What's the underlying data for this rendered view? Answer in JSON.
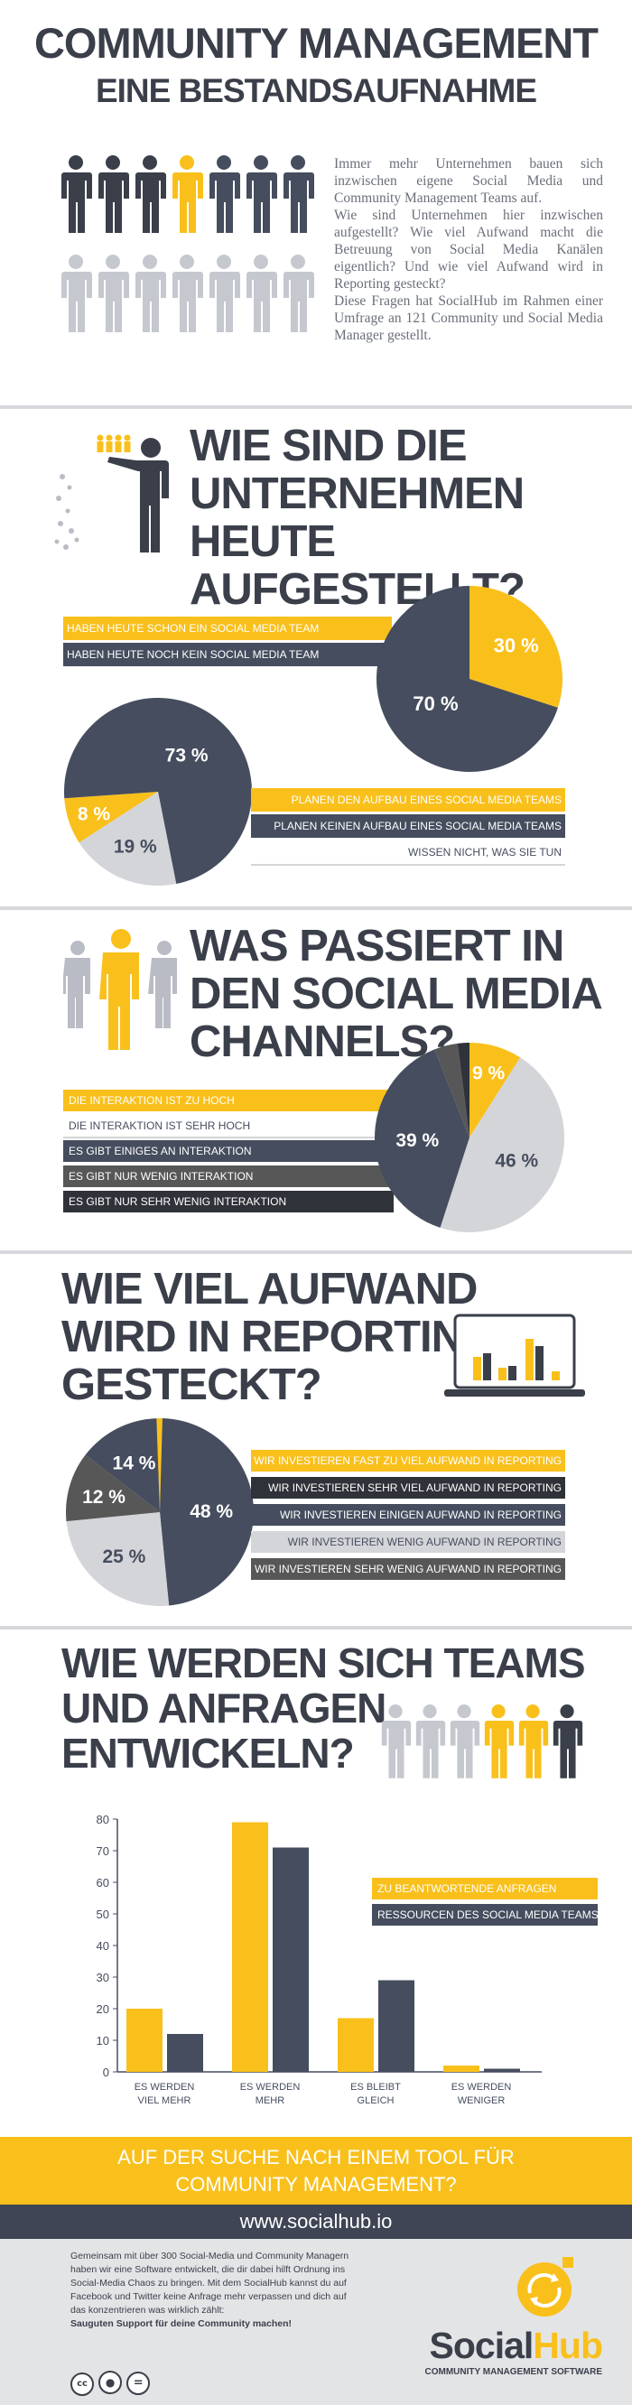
{
  "header": {
    "title": "COMMUNITY MANAGEMENT",
    "subtitle": "EINE BESTANDSAUFNAHME"
  },
  "intro": {
    "lines": [
      "Immer mehr Unternehmen bauen sich inzwischen eigene Social Media und Community Management Teams auf.",
      "Wie sind Unternehmen hier inzwischen aufgestellt? Wie viel Aufwand macht die Betreuung von Social Media Kanälen eigentlich? Und wie viel Aufwand wird in Reporting gesteckt?",
      "Diese Fragen hat SocialHub im Rahmen einer Umfrage an 121 Community und Social Media Manager gestellt."
    ]
  },
  "section1": {
    "title_lines": [
      "WIE SIND DIE",
      "UNTERNEHMEN",
      "HEUTE AUFGESTELLT?"
    ]
  },
  "section2": {
    "title_lines": [
      "WAS PASSIERT IN",
      "DEN SOCIAL MEDIA",
      "CHANNELS?"
    ]
  },
  "section3": {
    "title_lines": [
      "WIE VIEL AUFWAND",
      "WIRD IN REPORTING",
      "GESTECKT?"
    ]
  },
  "section4": {
    "title_lines": [
      "WIE WERDEN SICH TEAMS",
      "UND ANFRAGEN",
      "ENTWICKELN?"
    ]
  },
  "colors": {
    "yellow": "#f9c01c",
    "dark": "#454d5e",
    "darkgray": "#575757",
    "lightgray": "#d4d5d9",
    "title": "#3a3f4a"
  },
  "chart_data": [
    {
      "type": "pie",
      "labels": [
        "HABEN HEUTE SCHON EIN SOCIAL MEDIA TEAM",
        "HABEN HEUTE NOCH KEIN SOCIAL MEDIA TEAM"
      ],
      "values": [
        30,
        70
      ],
      "value_labels": [
        "30 %",
        "70 %"
      ],
      "colors": [
        "#f9c01c",
        "#454d5e"
      ]
    },
    {
      "type": "pie",
      "labels": [
        "PLANEN DEN AUFBAU EINES SOCIAL MEDIA TEAMS",
        "PLANEN KEINEN AUFBAU EINES SOCIAL MEDIA TEAMS",
        "WISSEN NICHT, WAS SIE TUN"
      ],
      "values": [
        8,
        73,
        19
      ],
      "value_labels": [
        "8 %",
        "73 %",
        "19 %"
      ],
      "colors": [
        "#f9c01c",
        "#454d5e",
        "#d4d5d9"
      ]
    },
    {
      "type": "pie",
      "labels": [
        "DIE INTERAKTION IST ZU HOCH",
        "DIE INTERAKTION IST SEHR HOCH",
        "ES GIBT EINIGES AN INTERAKTION",
        "ES GIBT NUR WENIG INTERAKTION",
        "ES GIBT NUR SEHR WENIG INTERAKTION"
      ],
      "values": [
        9,
        46,
        39,
        4,
        2
      ],
      "value_labels": [
        "9 %",
        "46 %",
        "39 %",
        "",
        ""
      ],
      "colors": [
        "#f9c01c",
        "#d4d5d9",
        "#454d5e",
        "#575757",
        "#2f3238"
      ]
    },
    {
      "type": "pie",
      "labels": [
        "WIR INVESTIEREN FAST ZU VIEL AUFWAND IN REPORTING",
        "WIR INVESTIEREN SEHR VIEL AUFWAND IN REPORTING",
        "WIR INVESTIEREN EINIGEN AUFWAND IN REPORTING",
        "WIR INVESTIEREN WENIG AUFWAND IN REPORTING",
        "WIR INVESTIEREN SEHR WENIG AUFWAND IN REPORTING"
      ],
      "values": [
        1,
        48,
        25,
        12,
        14
      ],
      "value_labels": [
        "",
        "48 %",
        "25 %",
        "12 %",
        "14 %"
      ],
      "colors": [
        "#f9c01c",
        "#454d5e",
        "#d4d5d9",
        "#575757",
        "#454d5e"
      ]
    },
    {
      "type": "bar",
      "categories": [
        "ES WERDEN VIEL MEHR",
        "ES WERDEN MEHR",
        "ES BLEIBT GLEICH",
        "ES WERDEN WENIGER"
      ],
      "category_lines": [
        [
          "ES WERDEN",
          "VIEL MEHR"
        ],
        [
          "ES WERDEN",
          "MEHR"
        ],
        [
          "ES BLEIBT",
          "GLEICH"
        ],
        [
          "ES WERDEN",
          "WENIGER"
        ]
      ],
      "series": [
        {
          "name": "ZU BEANTWORTENDE ANFRAGEN",
          "values": [
            20,
            79,
            17,
            2
          ],
          "color": "#f9c01c"
        },
        {
          "name": "RESSOURCEN DES SOCIAL MEDIA TEAMS",
          "values": [
            12,
            71,
            29,
            1
          ],
          "color": "#454d5e"
        }
      ],
      "ylim": [
        0,
        80
      ],
      "yticks": [
        0,
        10,
        20,
        30,
        40,
        50,
        60,
        70,
        80
      ],
      "grid": false,
      "legend": "right"
    }
  ],
  "cta": {
    "line1": "AUF DER SUCHE NACH EINEM TOOL FÜR",
    "line2": "COMMUNITY MANAGEMENT?",
    "url": "www.socialhub.io"
  },
  "footer": {
    "text_lines": [
      "Gemeinsam mit über 300 Social-Media und Community Managern",
      "haben wir eine Software entwickelt, die dir dabei hilft Ordnung ins",
      "Social-Media Chaos zu bringen. Mit dem SocialHub kannst du auf",
      "Facebook und Twitter keine Anfrage mehr verpassen und dich auf",
      "das konzentrieren was wirklich zählt:"
    ],
    "bold_line": "Sauguten Support für deine Community machen!",
    "logo_social": "Social",
    "logo_hub": "Hub",
    "logo_tagline": "COMMUNITY MANAGEMENT SOFTWARE",
    "license_icons": [
      "cc-icon",
      "by-icon",
      "nd-icon"
    ]
  }
}
